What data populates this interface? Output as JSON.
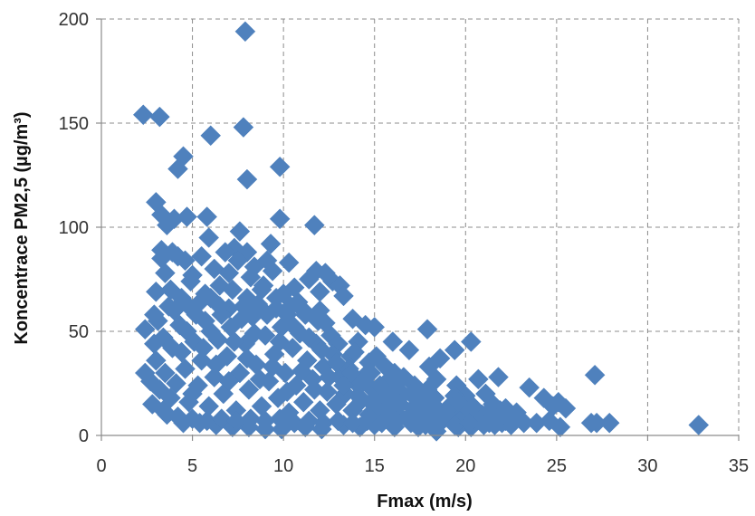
{
  "chart_data": {
    "type": "scatter",
    "title": "",
    "xlabel": "Fmax (m/s)",
    "ylabel": "Koncentrace PM2,5 (µg/m³)",
    "xlim": [
      0,
      35
    ],
    "ylim": [
      0,
      200
    ],
    "xticks": [
      0,
      5,
      10,
      15,
      20,
      25,
      30,
      35
    ],
    "yticks": [
      0,
      50,
      100,
      150,
      200
    ],
    "grid": true,
    "legend": "none",
    "marker": "diamond",
    "colors": {
      "marker": "#4f81bd",
      "grid": "#8c8c8c",
      "axis": "#8c8c8c"
    },
    "series": [
      {
        "points": [
          [
            7.9,
            194
          ],
          [
            2.3,
            154
          ],
          [
            3.2,
            153
          ],
          [
            7.8,
            148
          ],
          [
            6.0,
            144
          ],
          [
            4.5,
            134
          ],
          [
            4.2,
            128
          ],
          [
            9.8,
            129
          ],
          [
            8.0,
            123
          ],
          [
            3.0,
            112
          ],
          [
            3.3,
            106
          ],
          [
            4.0,
            104
          ],
          [
            4.7,
            105
          ],
          [
            5.8,
            105
          ],
          [
            9.8,
            104
          ],
          [
            11.7,
            101
          ],
          [
            3.6,
            101
          ],
          [
            5.9,
            95
          ],
          [
            7.6,
            98
          ],
          [
            9.3,
            92
          ],
          [
            3.3,
            89
          ],
          [
            3.9,
            88
          ],
          [
            3.3,
            85
          ],
          [
            4.2,
            86
          ],
          [
            4.6,
            84
          ],
          [
            7.3,
            90
          ],
          [
            8.0,
            88
          ],
          [
            6.2,
            80
          ],
          [
            8.4,
            81
          ],
          [
            7.0,
            78
          ],
          [
            9.1,
            84
          ],
          [
            10.3,
            83
          ],
          [
            12.3,
            78
          ],
          [
            11.8,
            79
          ],
          [
            12.7,
            74
          ],
          [
            13.1,
            72
          ],
          [
            13.3,
            67
          ],
          [
            3.0,
            69
          ],
          [
            3.8,
            70
          ],
          [
            5.0,
            77
          ],
          [
            6.5,
            72
          ],
          [
            10.6,
            71
          ],
          [
            12.0,
            69
          ],
          [
            11.4,
            75
          ],
          [
            13.8,
            56
          ],
          [
            14.5,
            53
          ],
          [
            15.0,
            52
          ],
          [
            17.9,
            51
          ],
          [
            20.3,
            45
          ],
          [
            19.4,
            41
          ],
          [
            16.9,
            41
          ],
          [
            16.0,
            45
          ],
          [
            18.6,
            37
          ],
          [
            18.0,
            33
          ],
          [
            15.6,
            33
          ],
          [
            21.8,
            28
          ],
          [
            20.7,
            27
          ],
          [
            23.5,
            23
          ],
          [
            24.3,
            18
          ],
          [
            25.1,
            16
          ],
          [
            24.8,
            14
          ],
          [
            25.5,
            13
          ],
          [
            22.2,
            13
          ],
          [
            21.5,
            15
          ],
          [
            20.0,
            19
          ],
          [
            19.5,
            24
          ],
          [
            17.2,
            24
          ],
          [
            17.9,
            22
          ],
          [
            16.6,
            28
          ],
          [
            15.1,
            38
          ],
          [
            14.1,
            45
          ],
          [
            12.3,
            54
          ],
          [
            13.7,
            38
          ],
          [
            14.7,
            35
          ],
          [
            16.1,
            30
          ],
          [
            18.4,
            27
          ],
          [
            19.4,
            19
          ],
          [
            21.1,
            20
          ],
          [
            22.4,
            9
          ],
          [
            23.0,
            8
          ],
          [
            24.6,
            7
          ],
          [
            25.2,
            4
          ],
          [
            26.9,
            6
          ],
          [
            27.2,
            6
          ],
          [
            27.9,
            6
          ],
          [
            27.1,
            29
          ],
          [
            32.8,
            5
          ],
          [
            23.9,
            6
          ],
          [
            22.2,
            7
          ],
          [
            21.6,
            5
          ],
          [
            20.3,
            4
          ],
          [
            19.6,
            4
          ],
          [
            18.4,
            2
          ],
          [
            17.4,
            4
          ],
          [
            16.1,
            4
          ],
          [
            15.0,
            5
          ],
          [
            14.2,
            4
          ],
          [
            13.3,
            5
          ],
          [
            12.1,
            3
          ],
          [
            11.2,
            4
          ],
          [
            9.9,
            3
          ],
          [
            9.0,
            3
          ],
          [
            8.1,
            4
          ],
          [
            7.2,
            4
          ],
          [
            6.3,
            5
          ],
          [
            5.4,
            6
          ],
          [
            4.5,
            6
          ],
          [
            3.6,
            10
          ],
          [
            2.8,
            15
          ],
          [
            2.4,
            30
          ],
          [
            2.4,
            51
          ],
          [
            2.9,
            58
          ],
          [
            3.7,
            62
          ],
          [
            4.4,
            66
          ],
          [
            5.3,
            63
          ],
          [
            6.0,
            66
          ],
          [
            7.0,
            61
          ],
          [
            7.8,
            62
          ],
          [
            8.6,
            63
          ],
          [
            9.6,
            61
          ],
          [
            10.2,
            58
          ],
          [
            11.1,
            60
          ],
          [
            11.9,
            55
          ],
          [
            12.6,
            48
          ],
          [
            13.0,
            44
          ],
          [
            13.9,
            40
          ],
          [
            14.8,
            30
          ],
          [
            15.7,
            26
          ],
          [
            16.3,
            22
          ],
          [
            17.3,
            18
          ],
          [
            18.2,
            15
          ],
          [
            19.0,
            13
          ],
          [
            19.8,
            11
          ],
          [
            20.9,
            10
          ],
          [
            21.9,
            12
          ],
          [
            22.8,
            11
          ],
          [
            3.0,
            36
          ],
          [
            3.2,
            22
          ],
          [
            3.4,
            47
          ],
          [
            3.9,
            42
          ],
          [
            4.3,
            53
          ],
          [
            4.1,
            25
          ],
          [
            4.6,
            32
          ],
          [
            4.8,
            16
          ],
          [
            5.1,
            45
          ],
          [
            5.3,
            24
          ],
          [
            5.5,
            36
          ],
          [
            5.7,
            55
          ],
          [
            5.9,
            14
          ],
          [
            6.2,
            28
          ],
          [
            6.4,
            46
          ],
          [
            6.7,
            20
          ],
          [
            6.9,
            38
          ],
          [
            7.1,
            52
          ],
          [
            7.4,
            12
          ],
          [
            7.6,
            30
          ],
          [
            7.9,
            44
          ],
          [
            8.1,
            22
          ],
          [
            8.3,
            57
          ],
          [
            8.5,
            34
          ],
          [
            8.8,
            14
          ],
          [
            9.0,
            48
          ],
          [
            9.2,
            26
          ],
          [
            9.5,
            39
          ],
          [
            9.7,
            18
          ],
          [
            9.9,
            52
          ],
          [
            10.1,
            30
          ],
          [
            10.3,
            11
          ],
          [
            10.5,
            42
          ],
          [
            10.7,
            24
          ],
          [
            10.9,
            49
          ],
          [
            11.1,
            16
          ],
          [
            11.3,
            36
          ],
          [
            11.6,
            27
          ],
          [
            11.8,
            44
          ],
          [
            12.0,
            12
          ],
          [
            12.2,
            33
          ],
          [
            12.4,
            21
          ],
          [
            12.7,
            39
          ],
          [
            12.9,
            15
          ],
          [
            13.1,
            28
          ],
          [
            13.4,
            20
          ],
          [
            13.6,
            32
          ],
          [
            13.8,
            12
          ],
          [
            14.0,
            25
          ],
          [
            14.3,
            17
          ],
          [
            14.5,
            29
          ],
          [
            14.7,
            10
          ],
          [
            14.9,
            22
          ],
          [
            15.2,
            14
          ],
          [
            15.4,
            20
          ],
          [
            15.6,
            9
          ],
          [
            15.9,
            16
          ],
          [
            16.2,
            11
          ],
          [
            16.5,
            19
          ],
          [
            16.8,
            8
          ],
          [
            17.1,
            13
          ],
          [
            17.5,
            10
          ],
          [
            17.8,
            16
          ],
          [
            18.1,
            7
          ],
          [
            18.5,
            11
          ],
          [
            18.8,
            8
          ],
          [
            19.2,
            14
          ],
          [
            19.5,
            6
          ],
          [
            19.9,
            9
          ],
          [
            20.2,
            12
          ],
          [
            20.6,
            7
          ],
          [
            21.0,
            9
          ],
          [
            21.3,
            6
          ],
          [
            21.7,
            8
          ],
          [
            22.0,
            6
          ],
          [
            22.5,
            5
          ],
          [
            23.2,
            6
          ],
          [
            3.5,
            78
          ],
          [
            4.9,
            74
          ],
          [
            5.5,
            86
          ],
          [
            6.8,
            88
          ],
          [
            7.5,
            84
          ],
          [
            8.2,
            76
          ],
          [
            8.9,
            72
          ],
          [
            9.4,
            79
          ],
          [
            10.0,
            68
          ],
          [
            10.8,
            64
          ],
          [
            2.7,
            26
          ],
          [
            2.9,
            44
          ],
          [
            3.1,
            55
          ],
          [
            3.5,
            30
          ],
          [
            3.8,
            18
          ],
          [
            4.0,
            60
          ],
          [
            4.4,
            40
          ],
          [
            4.7,
            50
          ],
          [
            5.0,
            20
          ],
          [
            5.2,
            58
          ],
          [
            5.6,
            42
          ],
          [
            6.0,
            50
          ],
          [
            6.3,
            34
          ],
          [
            6.6,
            58
          ],
          [
            7.0,
            26
          ],
          [
            7.3,
            45
          ],
          [
            7.7,
            56
          ],
          [
            8.0,
            37
          ],
          [
            8.4,
            49
          ],
          [
            8.7,
            27
          ],
          [
            9.1,
            58
          ],
          [
            9.4,
            33
          ],
          [
            9.8,
            45
          ],
          [
            10.2,
            21
          ],
          [
            10.6,
            52
          ],
          [
            11.0,
            31
          ],
          [
            11.4,
            47
          ],
          [
            11.7,
            22
          ],
          [
            12.1,
            41
          ],
          [
            12.5,
            28
          ],
          [
            12.9,
            35
          ],
          [
            13.3,
            24
          ],
          [
            13.7,
            30
          ],
          [
            14.1,
            19
          ],
          [
            14.4,
            26
          ],
          [
            14.8,
            16
          ],
          [
            15.3,
            24
          ],
          [
            15.8,
            19
          ],
          [
            16.4,
            15
          ],
          [
            17.0,
            20
          ],
          [
            17.6,
            12
          ],
          [
            18.3,
            18
          ],
          [
            18.9,
            10
          ],
          [
            19.6,
            16
          ],
          [
            20.4,
            14
          ],
          [
            21.2,
            11
          ],
          [
            22.1,
            10
          ],
          [
            3.4,
            12
          ],
          [
            4.2,
            9
          ],
          [
            5.0,
            8
          ],
          [
            5.8,
            7
          ],
          [
            6.6,
            8
          ],
          [
            7.4,
            7
          ],
          [
            8.2,
            8
          ],
          [
            9.0,
            7
          ],
          [
            9.8,
            8
          ],
          [
            10.6,
            6
          ],
          [
            11.4,
            7
          ],
          [
            12.2,
            6
          ],
          [
            13.0,
            7
          ],
          [
            13.8,
            6
          ],
          [
            14.6,
            7
          ],
          [
            15.4,
            6
          ],
          [
            16.2,
            7
          ],
          [
            17.0,
            6
          ],
          [
            17.8,
            5
          ],
          [
            18.6,
            6
          ],
          [
            19.4,
            5
          ],
          [
            20.2,
            6
          ],
          [
            21.0,
            5
          ],
          [
            4.8,
            62
          ],
          [
            5.7,
            68
          ],
          [
            6.5,
            62
          ],
          [
            7.2,
            70
          ],
          [
            8.0,
            66
          ],
          [
            8.8,
            70
          ],
          [
            9.6,
            66
          ],
          [
            10.4,
            62
          ],
          [
            11.2,
            58
          ],
          [
            12.0,
            60
          ]
        ]
      }
    ]
  }
}
